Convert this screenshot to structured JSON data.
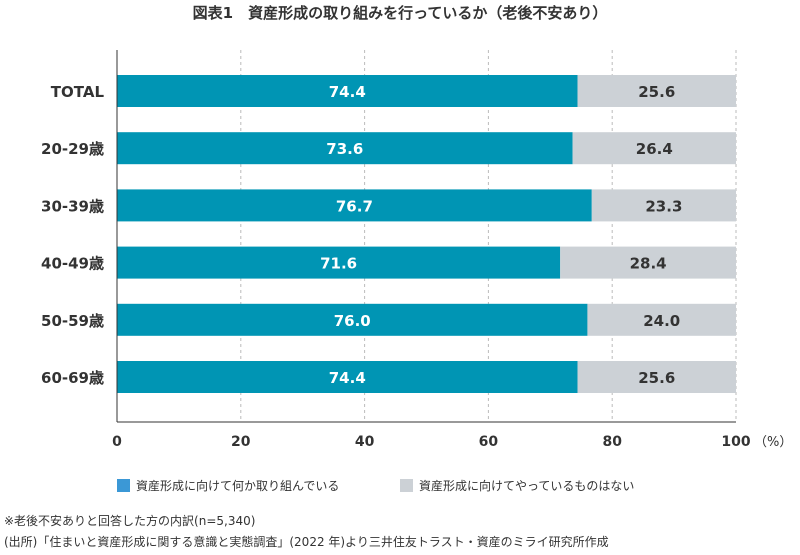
{
  "chart_data": {
    "type": "bar",
    "orientation": "horizontal",
    "stacked": true,
    "title": "図表1　資産形成の取り組みを行っているか（老後不安あり）",
    "categories": [
      "TOTAL",
      "20-29歳",
      "30-39歳",
      "40-49歳",
      "50-59歳",
      "60-69歳"
    ],
    "series": [
      {
        "name": "資産形成に向けて何か取り組んでいる",
        "values": [
          74.4,
          73.6,
          76.7,
          71.6,
          76.0,
          74.4
        ],
        "color": "#0095b4",
        "legend_color": "#3b98d6"
      },
      {
        "name": "資産形成に向けてやっているものはない",
        "values": [
          25.6,
          26.4,
          23.3,
          28.4,
          24.0,
          25.6
        ],
        "color": "#ccd1d6"
      }
    ],
    "xlim": [
      0,
      100
    ],
    "xticks": [
      0,
      20,
      40,
      60,
      80,
      100
    ],
    "xunit": "（%）",
    "grid": true,
    "legend_position": "bottom"
  },
  "notes": [
    "※老後不安ありと回答した方の内訳(n=5,340)",
    "(出所)「住まいと資産形成に関する意識と実態調査」(2022 年)より三井住友トラスト・資産のミライ研究所作成"
  ]
}
